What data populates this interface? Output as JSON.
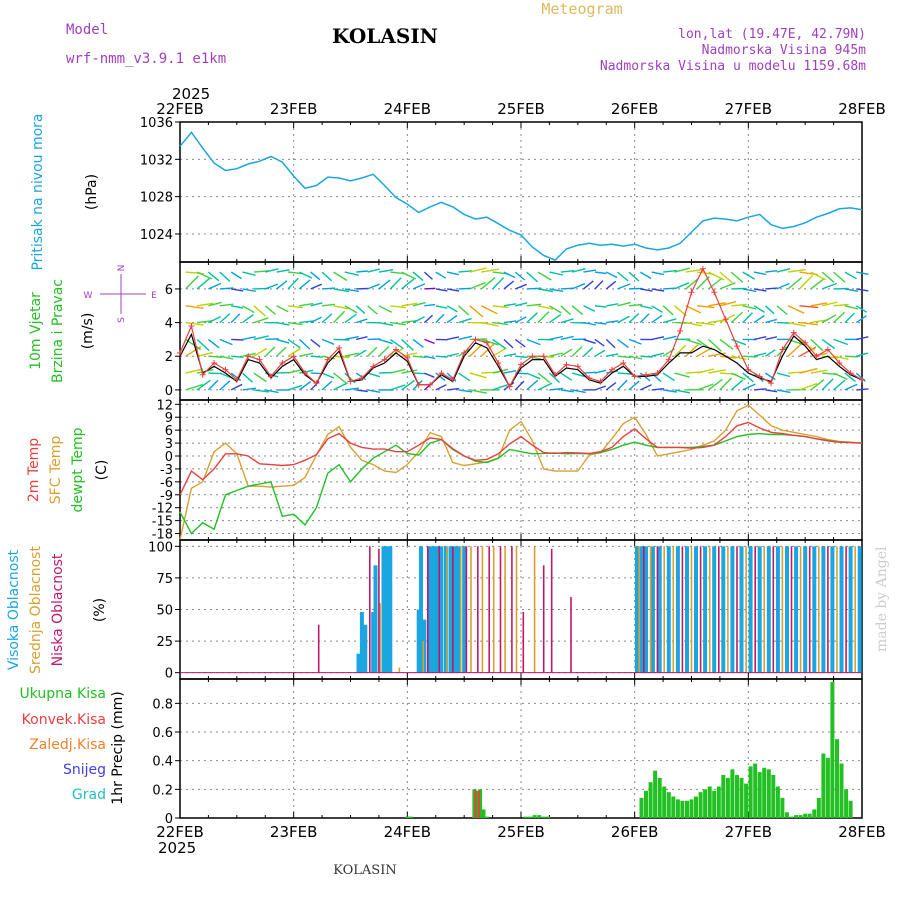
{
  "header": {
    "model_label": "Model",
    "model_name": "wrf-nmm_v3.9.1 e1km",
    "station": "KOLASIN",
    "product": "Meteogram",
    "coords": "lon,lat (19.47E, 42.79N)",
    "elevation": "Nadmorska Visina 945m",
    "model_elevation": "Nadmorska Visina u modelu 1159.68m",
    "footer_station": "KOLASIN",
    "credit": "made by Angel"
  },
  "time_axis": {
    "year": "2025",
    "labels": [
      "22FEB",
      "23FEB",
      "24FEB",
      "25FEB",
      "26FEB",
      "27FEB",
      "28FEB"
    ]
  },
  "colors": {
    "pressure": "#1aa6e0",
    "temp_2m": "#e84040",
    "temp_sfc": "#d9a030",
    "dewpoint": "#22c022",
    "cloud_high": "#1aa6e0",
    "cloud_mid": "#d9a030",
    "cloud_low": "#c0186a",
    "precip_total": "#22c022",
    "precip_conv": "#e84040",
    "precip_frz": "#f08030",
    "precip_snow": "#4040e0",
    "precip_graupel": "#20c0c0",
    "wind_label": "#22c022",
    "compass": "#a040c0"
  },
  "chart_data": [
    {
      "type": "line",
      "ylabel_main": "Pritisak na nivou mora",
      "ylabel_unit": "(hPa)",
      "ylim": [
        1021,
        1036
      ],
      "yticks": [
        1024,
        1028,
        1032,
        1036
      ],
      "x": [
        0,
        0.1,
        0.2,
        0.3,
        0.4,
        0.5,
        0.6,
        0.7,
        0.8,
        0.9,
        1.0,
        1.1,
        1.2,
        1.3,
        1.4,
        1.5,
        1.6,
        1.7,
        1.8,
        1.9,
        2.0,
        2.1,
        2.2,
        2.3,
        2.4,
        2.5,
        2.6,
        2.7,
        2.8,
        2.9,
        3.0,
        3.1,
        3.2,
        3.3,
        3.4,
        3.5,
        3.6,
        3.7,
        3.8,
        3.9,
        4.0,
        4.1,
        4.2,
        4.3,
        4.4,
        4.5,
        4.6,
        4.7,
        4.8,
        4.9,
        5.0,
        5.1,
        5.2,
        5.3,
        5.4,
        5.5,
        5.6,
        5.7,
        5.8,
        5.9,
        6.0
      ],
      "values": [
        1033.4,
        1034.9,
        1033.2,
        1031.6,
        1030.8,
        1031.0,
        1031.5,
        1031.8,
        1032.3,
        1031.7,
        1030.2,
        1028.9,
        1029.2,
        1030.1,
        1030.0,
        1029.7,
        1030.0,
        1030.4,
        1029.2,
        1027.9,
        1027.2,
        1026.3,
        1026.9,
        1027.4,
        1026.9,
        1026.1,
        1025.6,
        1025.8,
        1025.1,
        1024.4,
        1023.9,
        1022.6,
        1021.7,
        1021.2,
        1022.4,
        1022.8,
        1023.0,
        1022.8,
        1022.9,
        1022.7,
        1022.9,
        1022.5,
        1022.3,
        1022.5,
        1023.0,
        1024.2,
        1025.4,
        1025.7,
        1025.6,
        1025.4,
        1025.8,
        1026.1,
        1025.0,
        1024.6,
        1024.8,
        1025.2,
        1025.8,
        1026.2,
        1026.7,
        1026.8,
        1026.6
      ]
    },
    {
      "type": "line",
      "ylabel_main": "10m Vjetar",
      "ylabel_sub": "Brzina i Pravac",
      "ylabel_unit": "(m/s)",
      "compass": {
        "n": "N",
        "s": "S",
        "w": "W",
        "e": "E"
      },
      "ylim": [
        -0.6,
        7.6
      ],
      "yticks": [
        0,
        2,
        4,
        6
      ],
      "barb_rows": [
        0,
        1,
        2,
        3,
        4,
        5,
        6,
        7
      ],
      "x": [
        0,
        0.1,
        0.2,
        0.3,
        0.4,
        0.5,
        0.6,
        0.7,
        0.8,
        0.9,
        1.0,
        1.1,
        1.2,
        1.3,
        1.4,
        1.5,
        1.6,
        1.7,
        1.8,
        1.9,
        2.0,
        2.1,
        2.2,
        2.3,
        2.4,
        2.5,
        2.6,
        2.7,
        2.8,
        2.9,
        3.0,
        3.1,
        3.2,
        3.3,
        3.4,
        3.5,
        3.6,
        3.7,
        3.8,
        3.9,
        4.0,
        4.1,
        4.2,
        4.3,
        4.4,
        4.5,
        4.6,
        4.7,
        4.8,
        4.9,
        5.0,
        5.1,
        5.2,
        5.3,
        5.4,
        5.5,
        5.6,
        5.7,
        5.8,
        5.9,
        6.0
      ],
      "speed_model": [
        2.2,
        3.8,
        0.9,
        1.6,
        1.2,
        0.6,
        2.0,
        1.8,
        0.8,
        1.6,
        2.0,
        1.0,
        0.4,
        1.8,
        2.5,
        0.5,
        0.7,
        1.4,
        1.8,
        2.4,
        1.9,
        0.3,
        0.3,
        1.0,
        0.6,
        2.2,
        3.0,
        2.8,
        1.6,
        0.2,
        1.5,
        2.0,
        2.0,
        0.9,
        1.5,
        1.4,
        0.7,
        0.5,
        1.2,
        1.6,
        0.8,
        0.9,
        1.0,
        1.8,
        3.5,
        5.8,
        7.2,
        5.8,
        4.2,
        2.6,
        1.2,
        0.8,
        0.4,
        2.4,
        3.4,
        2.8,
        2.0,
        2.4,
        1.6,
        1.0,
        0.6
      ],
      "speed_gust": [
        2.0,
        3.3,
        1.0,
        1.4,
        1.0,
        0.5,
        1.8,
        1.6,
        0.7,
        1.4,
        1.8,
        0.9,
        0.4,
        1.6,
        2.3,
        0.5,
        0.6,
        1.3,
        1.6,
        2.2,
        1.7,
        0.3,
        0.3,
        0.9,
        0.5,
        2.0,
        2.8,
        2.5,
        1.4,
        0.2,
        1.3,
        1.8,
        1.8,
        0.8,
        1.3,
        1.2,
        0.6,
        0.4,
        1.0,
        1.4,
        0.8,
        0.8,
        0.9,
        1.6,
        2.2,
        2.2,
        2.6,
        2.4,
        2.0,
        1.6,
        1.0,
        0.7,
        0.5,
        2.0,
        3.2,
        2.6,
        1.8,
        2.0,
        1.4,
        0.9,
        0.6
      ]
    },
    {
      "type": "line",
      "ylabel_2m": "2m Temp",
      "ylabel_sfc": "SFC Temp",
      "ylabel_dew": "dewpt Temp",
      "ylabel_unit": "(C)",
      "ylim": [
        -19.5,
        13
      ],
      "yticks": [
        -18,
        -15,
        -12,
        -9,
        -6,
        -3,
        0,
        3,
        6,
        9,
        12
      ],
      "x": [
        0,
        0.1,
        0.2,
        0.3,
        0.4,
        0.5,
        0.6,
        0.7,
        0.8,
        0.9,
        1.0,
        1.1,
        1.2,
        1.3,
        1.4,
        1.5,
        1.6,
        1.7,
        1.8,
        1.9,
        2.0,
        2.1,
        2.2,
        2.3,
        2.4,
        2.5,
        2.6,
        2.7,
        2.8,
        2.9,
        3.0,
        3.1,
        3.2,
        3.3,
        3.4,
        3.5,
        3.6,
        3.7,
        3.8,
        3.9,
        4.0,
        4.1,
        4.2,
        4.3,
        4.4,
        4.5,
        4.6,
        4.7,
        4.8,
        4.9,
        5.0,
        5.1,
        5.2,
        5.3,
        5.4,
        5.5,
        5.6,
        5.7,
        5.8,
        5.9,
        6.0
      ],
      "temp_2m": [
        -9.0,
        -3.5,
        -5.5,
        -3.0,
        0.5,
        0.5,
        0.0,
        -1.8,
        -2.0,
        -2.2,
        -2.0,
        -1.0,
        0.3,
        4.0,
        5.2,
        3.0,
        2.0,
        1.6,
        1.6,
        1.0,
        1.0,
        2.5,
        4.2,
        3.8,
        1.7,
        0.0,
        -1.0,
        -0.8,
        0.5,
        2.8,
        4.5,
        2.5,
        0.8,
        0.6,
        0.8,
        0.7,
        0.6,
        1.0,
        2.0,
        4.5,
        6.3,
        4.0,
        2.0,
        2.0,
        2.0,
        1.8,
        2.0,
        2.5,
        4.5,
        7.0,
        7.8,
        6.5,
        5.5,
        5.2,
        4.8,
        4.5,
        4.0,
        3.5,
        3.2,
        3.1,
        3.0
      ],
      "temp_sfc": [
        -19.5,
        -7.5,
        -6.0,
        1.0,
        3.0,
        0.5,
        -7.0,
        -7.0,
        -7.2,
        -7.0,
        -6.8,
        -5.0,
        0.2,
        5.0,
        6.8,
        2.0,
        -1.0,
        -2.0,
        -3.5,
        -3.8,
        -2.0,
        1.0,
        5.4,
        4.5,
        -1.5,
        -2.2,
        -1.8,
        -1.4,
        -0.5,
        6.0,
        8.0,
        3.5,
        -3.0,
        -3.5,
        -3.5,
        -3.5,
        0.2,
        0.8,
        4.0,
        7.5,
        9.0,
        5.0,
        0.0,
        0.5,
        1.0,
        1.5,
        2.5,
        3.5,
        6.0,
        10.5,
        11.8,
        9.5,
        7.0,
        6.0,
        5.5,
        5.0,
        4.5,
        3.8,
        3.4,
        3.2,
        3.0
      ],
      "dewpoint": [
        -13.0,
        -18.0,
        -15.5,
        -17.0,
        -9.0,
        -8.0,
        -7.0,
        -6.5,
        -6.0,
        -14.0,
        -13.5,
        -16.0,
        -12.0,
        -4.0,
        -2.0,
        -6.0,
        -3.0,
        -0.5,
        1.0,
        2.5,
        0.6,
        0.2,
        3.0,
        3.8,
        1.5,
        0.0,
        -1.2,
        -1.5,
        -0.5,
        1.5,
        1.0,
        0.5,
        0.6,
        0.7,
        0.5,
        0.6,
        0.5,
        0.8,
        1.5,
        2.5,
        3.2,
        2.5,
        2.0,
        2.0,
        2.0,
        2.0,
        2.2,
        2.5,
        3.5,
        4.5,
        5.0,
        5.2,
        5.0,
        5.0,
        4.8,
        4.5,
        4.0,
        3.6,
        3.3,
        3.1,
        3.0
      ]
    },
    {
      "type": "bar",
      "ylabel_high": "Visoka Oblacnost",
      "ylabel_mid": "Srednja Oblacnost",
      "ylabel_low": "Niska Oblacnost",
      "ylabel_unit": "(%)",
      "ylim": [
        -5,
        105
      ],
      "yticks": [
        0,
        25,
        50,
        75,
        100
      ],
      "series": [
        {
          "name": "Visoka Oblacnost",
          "key": "high",
          "x": [
            1.57,
            1.6,
            1.63,
            1.7,
            1.72,
            1.79,
            1.82,
            1.85,
            2.1,
            2.12,
            2.15,
            2.2,
            2.23,
            2.26,
            2.3,
            2.34,
            2.38,
            2.42,
            2.45,
            2.5,
            4.02,
            4.06,
            4.1,
            4.16,
            4.22,
            4.3,
            4.38,
            4.46,
            4.54,
            4.62,
            4.7,
            4.78,
            4.86,
            4.94,
            5.02,
            5.1,
            5.18,
            5.26,
            5.34,
            5.42,
            5.5,
            5.58,
            5.66,
            5.74,
            5.82,
            5.9,
            5.98
          ],
          "values": [
            15,
            48,
            38,
            48,
            85,
            100,
            100,
            100,
            50,
            100,
            42,
            100,
            100,
            100,
            100,
            100,
            100,
            100,
            100,
            100,
            100,
            100,
            100,
            100,
            100,
            100,
            100,
            100,
            100,
            100,
            100,
            100,
            100,
            100,
            100,
            100,
            100,
            100,
            100,
            100,
            100,
            100,
            100,
            100,
            100,
            100,
            100
          ]
        },
        {
          "name": "Srednja Oblacnost",
          "key": "mid",
          "x": [
            1.76,
            1.93,
            2.14,
            2.35,
            2.47,
            2.56,
            2.66,
            2.76,
            2.86,
            2.96,
            3.12,
            4.04,
            4.14,
            4.26,
            4.34,
            4.5,
            4.66,
            4.82,
            4.98,
            5.14,
            5.3,
            5.46,
            5.62,
            5.78,
            5.94
          ],
          "values": [
            55,
            4,
            25,
            100,
            100,
            100,
            100,
            100,
            100,
            100,
            100,
            100,
            100,
            100,
            100,
            100,
            100,
            100,
            100,
            100,
            100,
            100,
            100,
            100,
            100
          ]
        },
        {
          "name": "Niska Oblacnost",
          "key": "low",
          "x": [
            1.22,
            1.67,
            1.75,
            2.18,
            2.28,
            2.4,
            2.52,
            2.62,
            2.72,
            2.82,
            2.92,
            3.02,
            3.2,
            3.27,
            3.44,
            4.08,
            4.2,
            4.42,
            4.58,
            4.74,
            4.9,
            5.06,
            5.22,
            5.38,
            5.54,
            5.7,
            5.86
          ],
          "values": [
            38,
            100,
            98,
            100,
            100,
            100,
            100,
            100,
            100,
            100,
            100,
            48,
            85,
            98,
            60,
            100,
            100,
            100,
            100,
            100,
            100,
            100,
            100,
            100,
            100,
            100,
            100
          ]
        }
      ]
    },
    {
      "type": "bar",
      "ylabel_main": "1hr Precip",
      "ylabel_unit": "(mm)",
      "legend": [
        "Ukupna Kisa",
        "Konvek.Kisa",
        "Zaledj.Kisa",
        "Snijeg",
        "Grad"
      ],
      "ylim": [
        0,
        0.97
      ],
      "yticks": [
        0,
        0.2,
        0.4,
        0.6,
        0.8
      ],
      "total_x": [
        2.0,
        2.03,
        2.59,
        2.62,
        2.64,
        2.67,
        2.7,
        3.04,
        3.08,
        3.12,
        3.16,
        3.2,
        3.24,
        4.06,
        4.1,
        4.14,
        4.18,
        4.22,
        4.26,
        4.3,
        4.34,
        4.38,
        4.42,
        4.46,
        4.5,
        4.54,
        4.58,
        4.62,
        4.66,
        4.7,
        4.74,
        4.78,
        4.82,
        4.86,
        4.9,
        4.94,
        4.98,
        5.02,
        5.06,
        5.1,
        5.14,
        5.18,
        5.22,
        5.26,
        5.3,
        5.34,
        5.38,
        5.42,
        5.46,
        5.5,
        5.54,
        5.58,
        5.62,
        5.66,
        5.7,
        5.74,
        5.78,
        5.82,
        5.86,
        5.9
      ],
      "total_values": [
        0.01,
        0.01,
        0.2,
        0.19,
        0.2,
        0.06,
        0.01,
        0.01,
        0.01,
        0.02,
        0.02,
        0.01,
        0.01,
        0.14,
        0.19,
        0.25,
        0.33,
        0.28,
        0.22,
        0.18,
        0.15,
        0.13,
        0.12,
        0.12,
        0.13,
        0.15,
        0.18,
        0.2,
        0.22,
        0.19,
        0.22,
        0.3,
        0.28,
        0.34,
        0.3,
        0.28,
        0.24,
        0.36,
        0.38,
        0.32,
        0.35,
        0.34,
        0.3,
        0.22,
        0.14,
        0.04,
        0.01,
        0.02,
        0.02,
        0.03,
        0.03,
        0.06,
        0.14,
        0.45,
        0.42,
        0.95,
        0.55,
        0.38,
        0.2,
        0.12
      ],
      "conv_x": [
        2.6,
        2.63
      ],
      "conv_values": [
        0.2,
        0.19
      ]
    }
  ]
}
